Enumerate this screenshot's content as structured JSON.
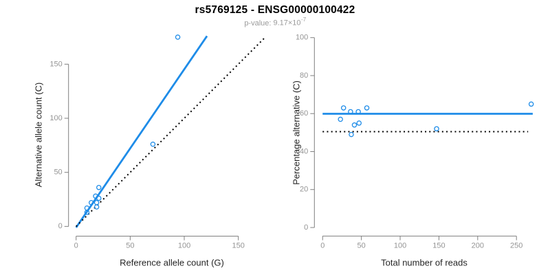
{
  "header": {
    "title": "rs5769125 - ENSG00000100422",
    "pvalue_label": "p-value:",
    "pvalue_mantissa": "9.17",
    "pvalue_base": "×10",
    "pvalue_exponent": "-7"
  },
  "colors": {
    "accent_blue": "#1E8CE8",
    "axis_line_gray": "#7f7f7f",
    "tick_label_gray": "#949494",
    "axis_title_black": "#262626",
    "dotted_line_black": "#000000"
  },
  "chart_data": [
    {
      "name": "allele-counts-scatter",
      "type": "scatter",
      "xlabel": "Reference allele count (G)",
      "ylabel": "Alternative allele count (C)",
      "xlim": [
        -7,
        182
      ],
      "ylim": [
        -9,
        178
      ],
      "xticks": [
        0,
        50,
        100,
        150
      ],
      "yticks": [
        0,
        50,
        100,
        150
      ],
      "grid": false,
      "points": [
        [
          94,
          175
        ],
        [
          71,
          76
        ],
        [
          21,
          36
        ],
        [
          21,
          26
        ],
        [
          19,
          22
        ],
        [
          19,
          18
        ],
        [
          18,
          28
        ],
        [
          14,
          22
        ],
        [
          10,
          17
        ],
        [
          10,
          13
        ]
      ],
      "lines": [
        {
          "name": "regression-line",
          "x1": 0,
          "y1": -1,
          "x2": 121,
          "y2": 176,
          "style": "solid",
          "color": "blue",
          "width": 2.8
        },
        {
          "name": "identity-line",
          "x1": 0,
          "y1": 0,
          "x2": 175,
          "y2": 175,
          "style": "dotted",
          "color": "black",
          "width": 2
        }
      ]
    },
    {
      "name": "percentage-scatter",
      "type": "scatter",
      "xlabel": "Total number of reads",
      "ylabel": "Percentage alternative (C)",
      "xlim": [
        -10.6,
        280.4
      ],
      "ylim": [
        -4.5,
        104.5
      ],
      "xticks": [
        0,
        50,
        100,
        150,
        200,
        250
      ],
      "yticks": [
        0,
        20,
        40,
        60,
        80,
        100
      ],
      "grid": false,
      "points": [
        [
          269,
          65
        ],
        [
          147,
          52
        ],
        [
          57,
          63
        ],
        [
          47,
          55
        ],
        [
          46,
          61
        ],
        [
          41,
          54
        ],
        [
          37,
          49
        ],
        [
          36,
          61
        ],
        [
          27,
          63
        ],
        [
          23,
          57
        ]
      ],
      "lines": [
        {
          "name": "mean-percentage-line",
          "x1": 0,
          "y1": 59.9,
          "x2": 271,
          "y2": 59.9,
          "style": "solid",
          "color": "blue",
          "width": 2.8
        },
        {
          "name": "fifty-percent-line",
          "x1": 0,
          "y1": 50.5,
          "x2": 265,
          "y2": 50.5,
          "style": "dotted",
          "color": "black",
          "width": 2
        }
      ]
    }
  ]
}
